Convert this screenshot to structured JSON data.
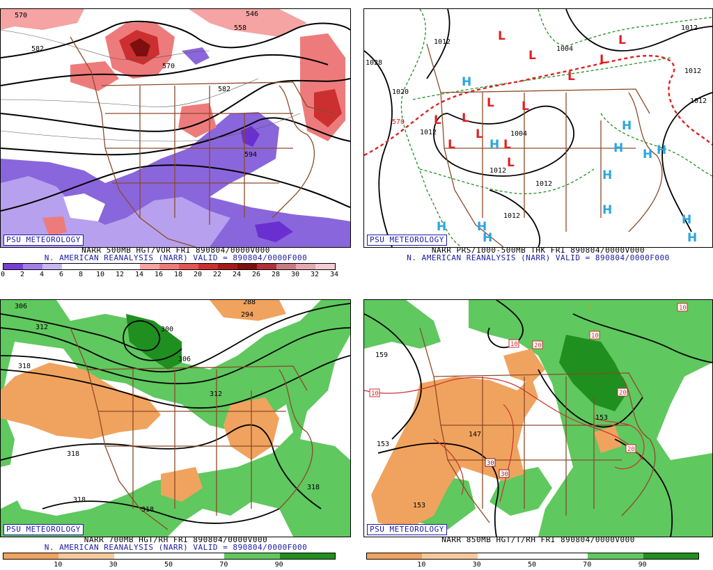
{
  "panels": [
    {
      "badge": "PSU METEOROLOGY",
      "caption_line1": "NARR 500MB HGT/VOR FRI 890804/0000V000",
      "caption_line2": "N. AMERICAN REANALYSIS (NARR) VALID = 890804/0000F000",
      "contour_labels": [
        "570",
        "582",
        "546",
        "558",
        "570",
        "582",
        "594"
      ],
      "colorbar": {
        "colors": [
          "#7a3fd1",
          "#a27fe6",
          "#c9b6f2",
          "#ffffff",
          "#ffffff",
          "#ffffff",
          "#ffffff",
          "#f5a3a3",
          "#ee7b7b",
          "#e35454",
          "#cc2f2f",
          "#a51a1a",
          "#7d0f0f",
          "#b0303a",
          "#c97a85",
          "#e3a9b1",
          "#f3cdd3"
        ],
        "ticks": [
          "0",
          "2",
          "4",
          "6",
          "8",
          "10",
          "12",
          "14",
          "16",
          "18",
          "20",
          "22",
          "24",
          "26",
          "28",
          "30",
          "32",
          "34"
        ]
      }
    },
    {
      "badge": "PSU METEOROLOGY",
      "caption_line1": "NARR PRS/1000-500MB THK FRI 890804/0000V000",
      "caption_line2": "N. AMERICAN REANALYSIS (NARR) VALID = 890804/0000F000",
      "contour_labels": [
        "1012",
        "1004",
        "1012",
        "1020",
        "1028",
        "1012",
        "1004",
        "1012",
        "1012",
        "1012",
        "1012",
        "1012",
        "570"
      ],
      "low_marker": "L",
      "high_marker": "H"
    },
    {
      "badge": "PSU METEOROLOGY",
      "caption_line1": "NARR 700MB HGT/RH FRI 890804/0000V000",
      "caption_line2": "N. AMERICAN REANALYSIS (NARR) VALID = 890804/0000F000",
      "contour_labels": [
        "306",
        "288",
        "294",
        "312",
        "300",
        "318",
        "306",
        "312",
        "318",
        "318",
        "318",
        "318"
      ],
      "colorbar": {
        "colors": [
          "#f0a35e",
          "#f7c99b",
          "#ffffff",
          "#ffffff",
          "#5fc85f",
          "#1f8f1f"
        ],
        "ticks": [
          "10",
          "30",
          "50",
          "70",
          "90"
        ]
      }
    },
    {
      "badge": "PSU METEOROLOGY",
      "caption_line1": "NARR 850MB HGT/T/RH FRI 890804/0000V000",
      "caption_line2": "",
      "contour_labels": [
        "159",
        "153",
        "147",
        "153",
        "153",
        "10",
        "10",
        "20",
        "20",
        "30",
        "30",
        "10",
        "20",
        "10",
        "0"
      ],
      "colorbar": {
        "colors": [
          "#f0a35e",
          "#f7c99b",
          "#ffffff",
          "#ffffff",
          "#5fc85f",
          "#1f8f1f"
        ],
        "ticks": [
          "10",
          "30",
          "50",
          "70",
          "90"
        ]
      }
    }
  ]
}
